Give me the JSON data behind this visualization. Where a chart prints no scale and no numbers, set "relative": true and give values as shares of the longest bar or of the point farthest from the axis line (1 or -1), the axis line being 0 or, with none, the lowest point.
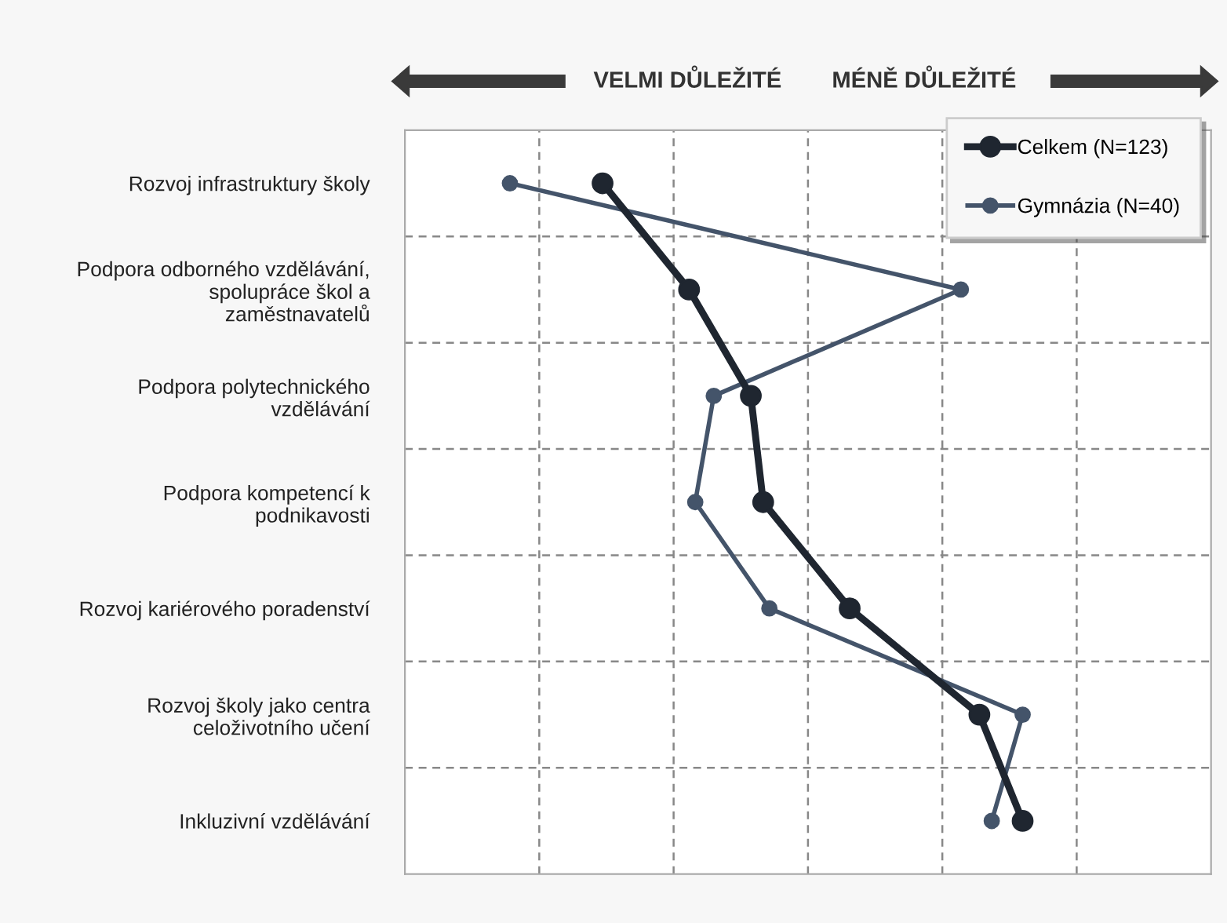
{
  "chart_data": {
    "type": "line",
    "orientation": "horizontal",
    "relative": true,
    "categories": [
      "Rozvoj infrastruktury školy",
      "Podpora odborného vzdělávání,\nspolupráce škol a\nzaměstnavatelů",
      "Podpora polytechnického\nvzdělávání",
      "Podpora kompetencí k\npodnikavosti",
      "Rozvoj kariérového poradenství",
      "Rozvoj školy jako centra\nceloživotního učení",
      "Inkluzivní vzdělávání"
    ],
    "series": [
      {
        "name": "Celkem (N=123)",
        "color": "#1f2630",
        "values": [
          0.32,
          0.46,
          0.56,
          0.58,
          0.72,
          0.93,
          1.0
        ]
      },
      {
        "name": "Gymnázia (N=40)",
        "color": "#44546a",
        "values": [
          0.17,
          0.9,
          0.5,
          0.47,
          0.59,
          1.0,
          0.95
        ]
      }
    ],
    "annotations": [
      "VELMI DŮLEŽITÉ",
      "MÉNĚ DŮLEŽITÉ"
    ],
    "marker": "circle",
    "line_style": "solid",
    "grid": true,
    "legend": "top right"
  }
}
